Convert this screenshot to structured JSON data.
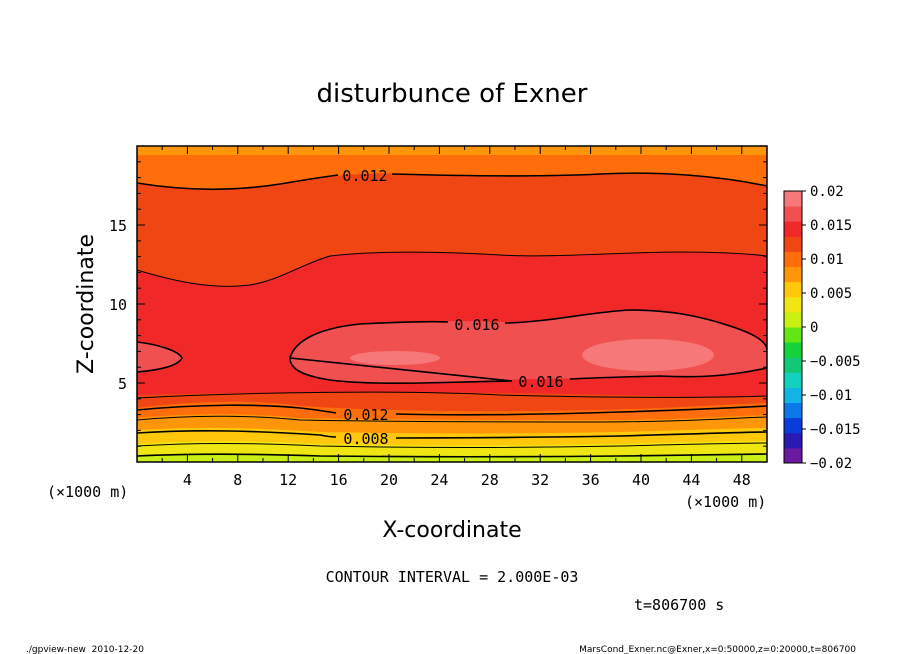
{
  "chart_data": {
    "type": "contour",
    "title": "disturbunce of Exner",
    "xlabel": "X-coordinate",
    "ylabel": "Z-coordinate",
    "x_unit": "(×1000 m)",
    "y_unit": "(×1000 m)",
    "xlim": [
      0,
      50
    ],
    "ylim": [
      0,
      20
    ],
    "x_ticks": [
      4,
      8,
      12,
      16,
      20,
      24,
      28,
      32,
      36,
      40,
      44,
      48
    ],
    "y_ticks": [
      5,
      10,
      15
    ],
    "contour_interval_text": "CONTOUR INTERVAL = 2.000E-03",
    "time_text": "t=806700 s",
    "contour_labels": [
      {
        "text": "0.012",
        "x": 17.5,
        "z": 18.0
      },
      {
        "text": "0.016",
        "x": 27,
        "z": 8.5
      },
      {
        "text": "0.016",
        "x": 32,
        "z": 5.2
      },
      {
        "text": "0.012",
        "x": 17.5,
        "z": 3.0
      },
      {
        "text": "0.008",
        "x": 17.5,
        "z": 1.4
      }
    ],
    "colorbar": {
      "range": [
        -0.02,
        0.02
      ],
      "tick_labels": [
        "0.02",
        "0.015",
        "0.01",
        "0.005",
        "0",
        "−0.005",
        "−0.01",
        "−0.015",
        "−0.02"
      ],
      "colors": [
        "#6a1aa0",
        "#2a1ab0",
        "#0a3cdc",
        "#0a78e6",
        "#12b4e6",
        "#12d2be",
        "#10c878",
        "#14d23c",
        "#64e614",
        "#c8f014",
        "#f0e614",
        "#ffc80a",
        "#ff960a",
        "#ff6e0a",
        "#f04614",
        "#f02828",
        "#f05050",
        "#f77878"
      ],
      "level_colors": {
        "0.002": "#c8f014",
        "0.004": "#f0e614",
        "0.006": "#ffc80a",
        "0.008": "#ff960a",
        "0.010": "#ff6e0a",
        "0.012": "#f04614",
        "0.014": "#f02828",
        "0.016": "#f05050",
        "0.018": "#f77878"
      }
    }
  },
  "footer": {
    "left": "./gpview-new  2010-12-20",
    "right": "MarsCond_Exner.nc@Exner,x=0:50000,z=0:20000,t=806700"
  }
}
